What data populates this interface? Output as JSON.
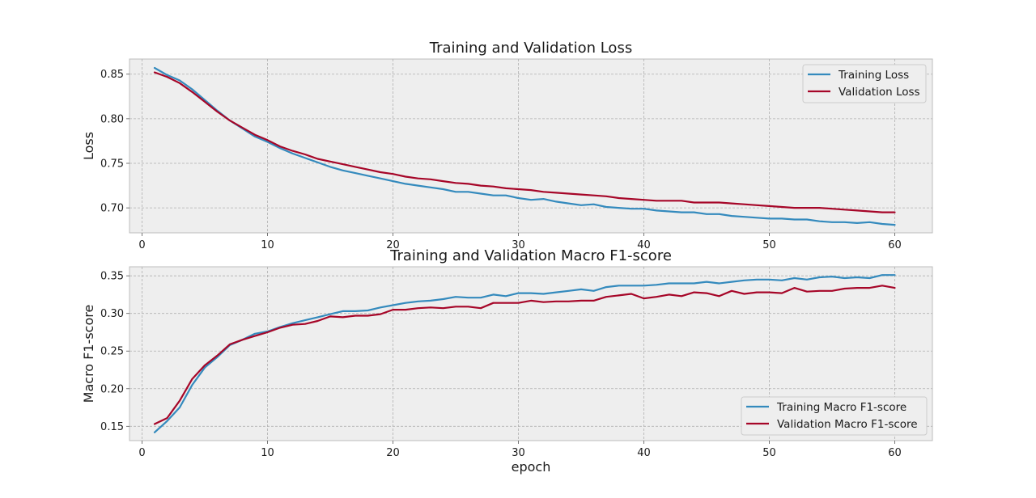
{
  "colors": {
    "training": "#348abd",
    "validation": "#a60628"
  },
  "chart_data": [
    {
      "type": "line",
      "title": "Training and Validation Loss",
      "xlabel": "",
      "ylabel": "Loss",
      "xlim": [
        -1,
        63
      ],
      "ylim": [
        0.672,
        0.867
      ],
      "xticks": [
        0,
        10,
        20,
        30,
        40,
        50,
        60
      ],
      "yticks": [
        0.7,
        0.75,
        0.8,
        0.85
      ],
      "ytick_labels": [
        "0.70",
        "0.75",
        "0.80",
        "0.85"
      ],
      "grid": true,
      "legend_position": "top-right",
      "x": [
        1,
        2,
        3,
        4,
        5,
        6,
        7,
        8,
        9,
        10,
        11,
        12,
        13,
        14,
        15,
        16,
        17,
        18,
        19,
        20,
        21,
        22,
        23,
        24,
        25,
        26,
        27,
        28,
        29,
        30,
        31,
        32,
        33,
        34,
        35,
        36,
        37,
        38,
        39,
        40,
        41,
        42,
        43,
        44,
        45,
        46,
        47,
        48,
        49,
        50,
        51,
        52,
        53,
        54,
        55,
        56,
        57,
        58,
        59,
        60
      ],
      "series": [
        {
          "name": "Training Loss",
          "color_key": "training",
          "values": [
            0.857,
            0.849,
            0.843,
            0.833,
            0.821,
            0.809,
            0.798,
            0.789,
            0.78,
            0.774,
            0.767,
            0.761,
            0.756,
            0.751,
            0.746,
            0.742,
            0.739,
            0.736,
            0.733,
            0.73,
            0.727,
            0.725,
            0.723,
            0.721,
            0.718,
            0.718,
            0.716,
            0.714,
            0.714,
            0.711,
            0.709,
            0.71,
            0.707,
            0.705,
            0.703,
            0.704,
            0.701,
            0.7,
            0.699,
            0.699,
            0.697,
            0.696,
            0.695,
            0.695,
            0.693,
            0.693,
            0.691,
            0.69,
            0.689,
            0.688,
            0.688,
            0.687,
            0.687,
            0.685,
            0.684,
            0.684,
            0.683,
            0.684,
            0.682,
            0.681
          ]
        },
        {
          "name": "Validation Loss",
          "color_key": "validation",
          "values": [
            0.852,
            0.847,
            0.84,
            0.83,
            0.819,
            0.808,
            0.798,
            0.79,
            0.782,
            0.776,
            0.769,
            0.764,
            0.76,
            0.755,
            0.752,
            0.749,
            0.746,
            0.743,
            0.74,
            0.738,
            0.735,
            0.733,
            0.732,
            0.73,
            0.728,
            0.727,
            0.725,
            0.724,
            0.722,
            0.721,
            0.72,
            0.718,
            0.717,
            0.716,
            0.715,
            0.714,
            0.713,
            0.711,
            0.71,
            0.709,
            0.708,
            0.708,
            0.708,
            0.706,
            0.706,
            0.706,
            0.705,
            0.704,
            0.703,
            0.702,
            0.701,
            0.7,
            0.7,
            0.7,
            0.699,
            0.698,
            0.697,
            0.696,
            0.695,
            0.695
          ]
        }
      ]
    },
    {
      "type": "line",
      "title": "Training and Validation Macro F1-score",
      "xlabel": "epoch",
      "ylabel": "Macro F1-score",
      "xlim": [
        -1,
        63
      ],
      "ylim": [
        0.131,
        0.362
      ],
      "xticks": [
        0,
        10,
        20,
        30,
        40,
        50,
        60
      ],
      "yticks": [
        0.15,
        0.2,
        0.25,
        0.3,
        0.35
      ],
      "ytick_labels": [
        "0.15",
        "0.20",
        "0.25",
        "0.30",
        "0.35"
      ],
      "grid": true,
      "legend_position": "bottom-right",
      "x": [
        1,
        2,
        3,
        4,
        5,
        6,
        7,
        8,
        9,
        10,
        11,
        12,
        13,
        14,
        15,
        16,
        17,
        18,
        19,
        20,
        21,
        22,
        23,
        24,
        25,
        26,
        27,
        28,
        29,
        30,
        31,
        32,
        33,
        34,
        35,
        36,
        37,
        38,
        39,
        40,
        41,
        42,
        43,
        44,
        45,
        46,
        47,
        48,
        49,
        50,
        51,
        52,
        53,
        54,
        55,
        56,
        57,
        58,
        59,
        60
      ],
      "series": [
        {
          "name": "Training Macro F1-score",
          "color_key": "training",
          "values": [
            0.142,
            0.157,
            0.175,
            0.205,
            0.228,
            0.242,
            0.258,
            0.265,
            0.273,
            0.276,
            0.282,
            0.287,
            0.291,
            0.295,
            0.299,
            0.303,
            0.303,
            0.304,
            0.308,
            0.311,
            0.314,
            0.316,
            0.317,
            0.319,
            0.322,
            0.321,
            0.321,
            0.325,
            0.323,
            0.327,
            0.327,
            0.326,
            0.328,
            0.33,
            0.332,
            0.33,
            0.335,
            0.337,
            0.337,
            0.337,
            0.338,
            0.34,
            0.34,
            0.34,
            0.342,
            0.34,
            0.342,
            0.344,
            0.345,
            0.345,
            0.344,
            0.347,
            0.345,
            0.348,
            0.349,
            0.347,
            0.348,
            0.347,
            0.351,
            0.351
          ]
        },
        {
          "name": "Validation Macro F1-score",
          "color_key": "validation",
          "values": [
            0.153,
            0.161,
            0.184,
            0.213,
            0.231,
            0.244,
            0.259,
            0.265,
            0.27,
            0.275,
            0.281,
            0.285,
            0.286,
            0.29,
            0.296,
            0.295,
            0.297,
            0.297,
            0.299,
            0.305,
            0.305,
            0.307,
            0.308,
            0.307,
            0.309,
            0.309,
            0.307,
            0.314,
            0.314,
            0.314,
            0.317,
            0.315,
            0.316,
            0.316,
            0.317,
            0.317,
            0.322,
            0.324,
            0.326,
            0.32,
            0.322,
            0.325,
            0.323,
            0.328,
            0.327,
            0.323,
            0.33,
            0.326,
            0.328,
            0.328,
            0.327,
            0.334,
            0.329,
            0.33,
            0.33,
            0.333,
            0.334,
            0.334,
            0.337,
            0.334
          ]
        }
      ]
    }
  ]
}
